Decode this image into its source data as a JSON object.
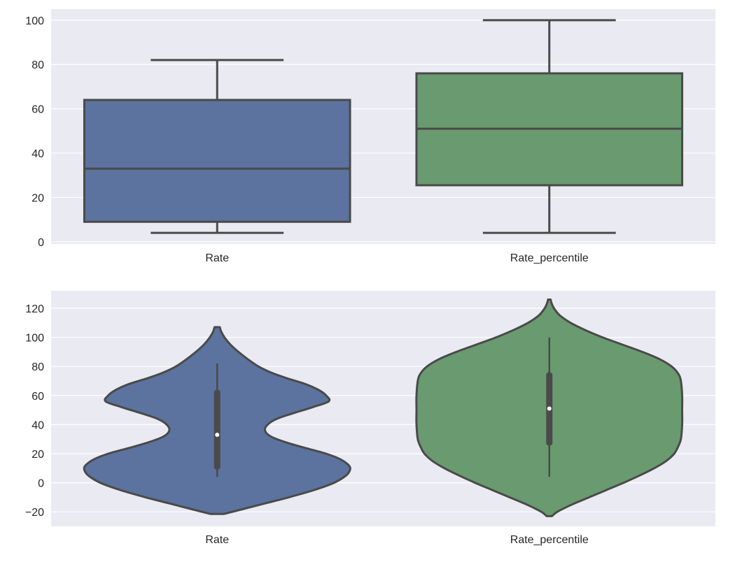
{
  "colors": {
    "background": "#eaeaf2",
    "grid": "#ffffff",
    "outline": "#4a4a4a",
    "rate": "#5b739e",
    "rate_percentile": "#6a9a6f",
    "median_dot": "#ffffff"
  },
  "chart_data": [
    {
      "type": "box",
      "categories": [
        "Rate",
        "Rate_percentile"
      ],
      "ylim": [
        -1,
        105
      ],
      "yticks": [
        0,
        20,
        40,
        60,
        80,
        100
      ],
      "grid": true,
      "series": [
        {
          "category": "Rate",
          "whisker_low": 4,
          "q1": 9,
          "median": 33,
          "q3": 64,
          "whisker_high": 82
        },
        {
          "category": "Rate_percentile",
          "whisker_low": 4,
          "q1": 25.5,
          "median": 51,
          "q3": 76,
          "whisker_high": 100
        }
      ]
    },
    {
      "type": "violin",
      "categories": [
        "Rate",
        "Rate_percentile"
      ],
      "ylim": [
        -30,
        132
      ],
      "yticks": [
        -20,
        0,
        20,
        40,
        60,
        80,
        100,
        120
      ],
      "ytick_labels": [
        "−20",
        "0",
        "20",
        "40",
        "60",
        "80",
        "100",
        "120"
      ],
      "grid": true,
      "series": [
        {
          "category": "Rate",
          "q1": 9,
          "median": 33,
          "q3": 64,
          "whisker_low": 4,
          "whisker_high": 82,
          "y_range": [
            -21.5,
            107
          ],
          "density_profile": [
            [
              -21.5,
              0.05
            ],
            [
              -18,
              0.2
            ],
            [
              -14,
              0.37
            ],
            [
              -10,
              0.54
            ],
            [
              -5,
              0.73
            ],
            [
              0,
              0.88
            ],
            [
              5,
              0.97
            ],
            [
              9,
              1.0
            ],
            [
              12,
              0.99
            ],
            [
              16,
              0.93
            ],
            [
              20,
              0.82
            ],
            [
              24,
              0.66
            ],
            [
              28,
              0.51
            ],
            [
              32,
              0.4
            ],
            [
              36,
              0.36
            ],
            [
              40,
              0.38
            ],
            [
              44,
              0.45
            ],
            [
              48,
              0.58
            ],
            [
              52,
              0.72
            ],
            [
              56,
              0.84
            ],
            [
              60,
              0.82
            ],
            [
              64,
              0.76
            ],
            [
              68,
              0.66
            ],
            [
              72,
              0.52
            ],
            [
              76,
              0.4
            ],
            [
              80,
              0.31
            ],
            [
              85,
              0.23
            ],
            [
              90,
              0.16
            ],
            [
              95,
              0.1
            ],
            [
              100,
              0.055
            ],
            [
              104,
              0.03
            ],
            [
              107,
              0.02
            ]
          ]
        },
        {
          "category": "Rate_percentile",
          "q1": 25.5,
          "median": 51,
          "q3": 76,
          "whisker_low": 4,
          "whisker_high": 100,
          "y_range": [
            -23,
            126
          ],
          "density_profile": [
            [
              -23,
              0.02
            ],
            [
              -20,
              0.06
            ],
            [
              -15,
              0.17
            ],
            [
              -10,
              0.3
            ],
            [
              -5,
              0.43
            ],
            [
              0,
              0.56
            ],
            [
              5,
              0.68
            ],
            [
              10,
              0.79
            ],
            [
              15,
              0.88
            ],
            [
              20,
              0.94
            ],
            [
              25,
              0.97
            ],
            [
              30,
              0.99
            ],
            [
              40,
              1.0
            ],
            [
              50,
              1.0
            ],
            [
              60,
              1.0
            ],
            [
              70,
              0.99
            ],
            [
              75,
              0.97
            ],
            [
              80,
              0.92
            ],
            [
              85,
              0.83
            ],
            [
              90,
              0.7
            ],
            [
              95,
              0.55
            ],
            [
              100,
              0.4
            ],
            [
              105,
              0.27
            ],
            [
              110,
              0.16
            ],
            [
              115,
              0.08
            ],
            [
              120,
              0.035
            ],
            [
              124,
              0.015
            ],
            [
              126,
              0.01
            ]
          ]
        }
      ]
    }
  ]
}
